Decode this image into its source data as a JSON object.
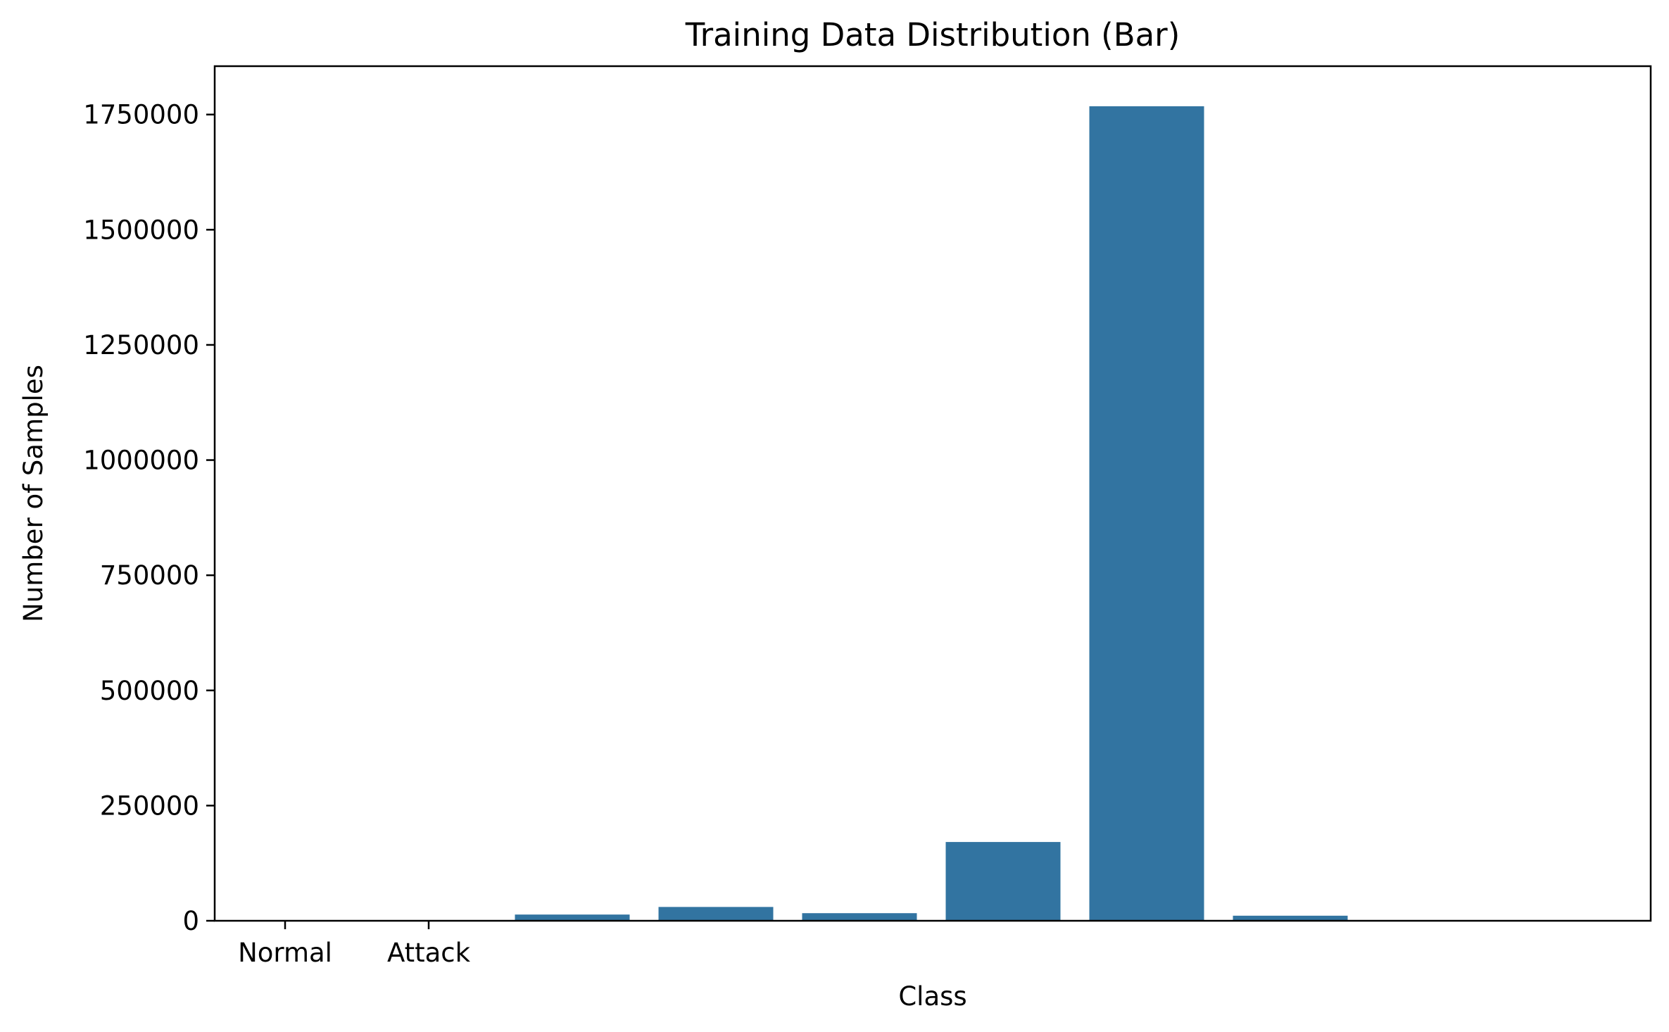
{
  "chart_data": {
    "type": "bar",
    "title": "Training Data Distribution (Bar)",
    "xlabel": "Class",
    "ylabel": "Number of Samples",
    "categories": [
      "Normal",
      "Attack",
      "",
      "",
      "",
      "",
      "",
      "",
      "",
      ""
    ],
    "values": [
      0,
      0,
      13500,
      30000,
      16500,
      171000,
      1768000,
      11000,
      0,
      0
    ],
    "ylim": [
      0,
      1855000
    ],
    "yticks": [
      0,
      250000,
      500000,
      750000,
      1000000,
      1250000,
      1500000,
      1750000
    ],
    "ytick_labels": [
      "0",
      "250000",
      "500000",
      "750000",
      "1000000",
      "1250000",
      "1500000",
      "1750000"
    ],
    "bar_color": "#3274a1",
    "grid": false,
    "legend": null
  }
}
